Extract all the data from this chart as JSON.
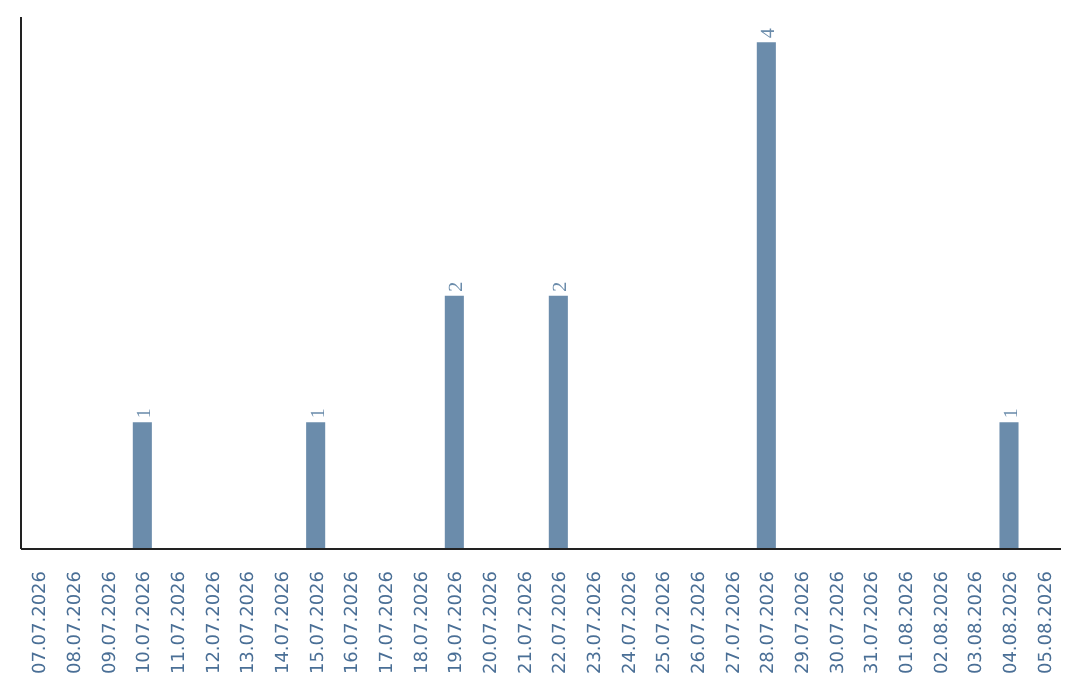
{
  "chart_data": {
    "type": "bar",
    "categories": [
      "07.07.2026",
      "08.07.2026",
      "09.07.2026",
      "10.07.2026",
      "11.07.2026",
      "12.07.2026",
      "13.07.2026",
      "14.07.2026",
      "15.07.2026",
      "16.07.2026",
      "17.07.2026",
      "18.07.2026",
      "19.07.2026",
      "20.07.2026",
      "21.07.2026",
      "22.07.2026",
      "23.07.2026",
      "24.07.2026",
      "25.07.2026",
      "26.07.2026",
      "27.07.2026",
      "28.07.2026",
      "29.07.2026",
      "30.07.2026",
      "31.07.2026",
      "01.08.2026",
      "02.08.2026",
      "03.08.2026",
      "04.08.2026",
      "05.08.2026"
    ],
    "values": [
      0,
      0,
      0,
      1,
      0,
      0,
      0,
      0,
      1,
      0,
      0,
      0,
      2,
      0,
      0,
      2,
      0,
      0,
      0,
      0,
      0,
      4,
      0,
      0,
      0,
      0,
      0,
      0,
      1,
      0
    ],
    "value_labels": [
      null,
      null,
      null,
      "1",
      null,
      null,
      null,
      null,
      "1",
      null,
      null,
      null,
      "2",
      null,
      null,
      "2",
      null,
      null,
      null,
      null,
      null,
      "4",
      null,
      null,
      null,
      null,
      null,
      null,
      "1",
      null
    ],
    "color": "#6b8cab",
    "grid": false
  }
}
